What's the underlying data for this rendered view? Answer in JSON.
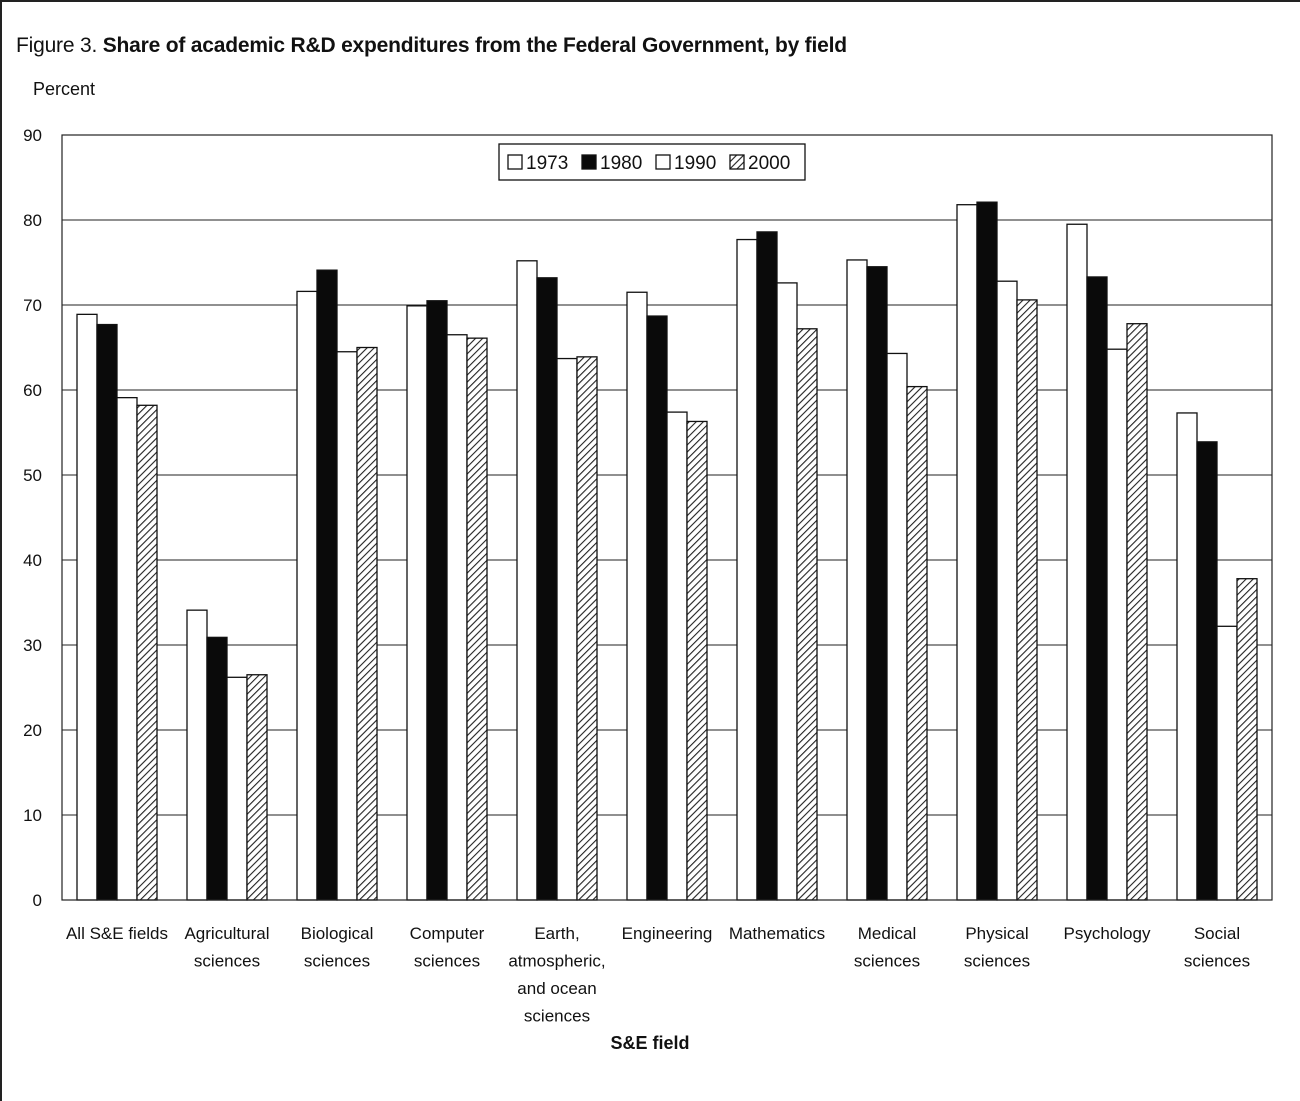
{
  "figure_title": {
    "prefix": "Figure 3.",
    "text": "Share of academic R&D expenditures from the Federal Government, by field"
  },
  "chart_data": {
    "type": "bar",
    "title": "Share of academic R&D expenditures from the Federal Government, by field",
    "ylabel": "Percent",
    "xlabel": "S&E field",
    "ylim": [
      0,
      90
    ],
    "yticks": [
      0,
      10,
      20,
      30,
      40,
      50,
      60,
      70,
      80,
      90
    ],
    "grid": true,
    "legend_position": "top-center",
    "categories": [
      "All S&E fields",
      "Agricultural sciences",
      "Biological sciences",
      "Computer sciences",
      "Earth, atmospheric, and ocean sciences",
      "Engineering",
      "Mathematics",
      "Medical sciences",
      "Physical sciences",
      "Psychology",
      "Social sciences"
    ],
    "category_label_lines": [
      [
        "All S&E fields"
      ],
      [
        "Agricultural",
        "sciences"
      ],
      [
        "Biological",
        "sciences"
      ],
      [
        "Computer",
        "sciences"
      ],
      [
        "Earth,",
        "atmospheric,",
        "and ocean",
        "sciences"
      ],
      [
        "Engineering"
      ],
      [
        "Mathematics"
      ],
      [
        "Medical",
        "sciences"
      ],
      [
        "Physical",
        "sciences"
      ],
      [
        "Psychology"
      ],
      [
        "Social",
        "sciences"
      ]
    ],
    "series": [
      {
        "name": "1973",
        "fill": "white",
        "values": [
          68.9,
          34.1,
          71.6,
          69.9,
          75.2,
          71.5,
          77.7,
          75.3,
          81.8,
          79.5,
          57.3
        ]
      },
      {
        "name": "1980",
        "fill": "black",
        "values": [
          67.7,
          30.9,
          74.1,
          70.5,
          73.2,
          68.7,
          78.6,
          74.5,
          82.1,
          73.3,
          53.9
        ]
      },
      {
        "name": "1990",
        "fill": "white",
        "values": [
          59.1,
          26.2,
          64.5,
          66.5,
          63.7,
          57.4,
          72.6,
          64.3,
          72.8,
          64.8,
          32.2
        ]
      },
      {
        "name": "2000",
        "fill": "hatched",
        "values": [
          58.2,
          26.5,
          65.0,
          66.1,
          63.9,
          56.3,
          67.2,
          60.4,
          70.6,
          67.8,
          37.8
        ]
      }
    ]
  }
}
